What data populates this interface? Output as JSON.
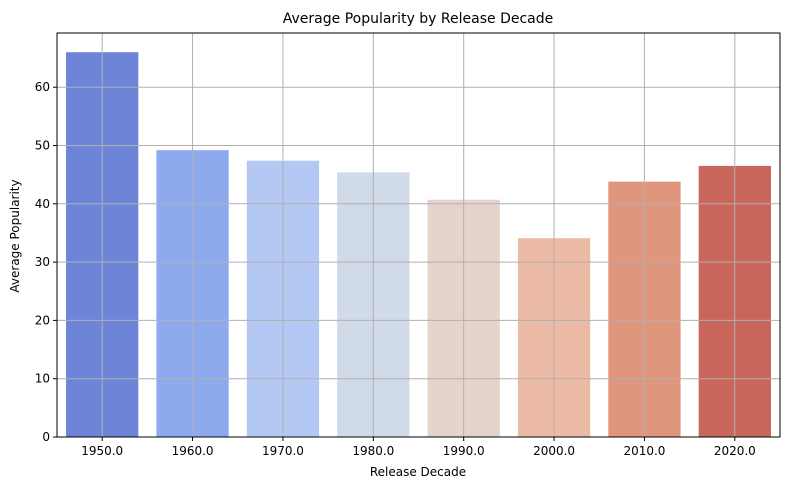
{
  "chart_data": {
    "type": "bar",
    "title": "Average Popularity by Release Decade",
    "xlabel": "Release Decade",
    "ylabel": "Average Popularity",
    "categories": [
      "1950.0",
      "1960.0",
      "1970.0",
      "1980.0",
      "1990.0",
      "2000.0",
      "2010.0",
      "2020.0"
    ],
    "values": [
      66.0,
      49.2,
      47.4,
      45.4,
      40.7,
      34.1,
      43.8,
      46.5
    ],
    "colors": [
      "#6c85d9",
      "#8eaaee",
      "#b4c8f4",
      "#d1dae9",
      "#e6d4cc",
      "#ecbba5",
      "#e0957d",
      "#c8665c"
    ],
    "yticks": [
      0,
      10,
      20,
      30,
      40,
      50,
      60
    ],
    "ylim": [
      0,
      69.3
    ],
    "grid": true
  }
}
